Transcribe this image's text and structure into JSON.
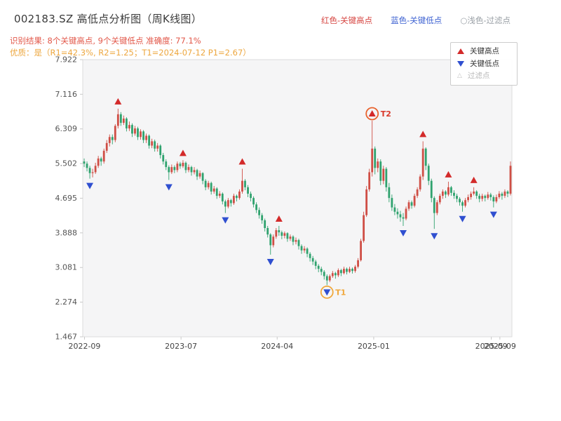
{
  "header": {
    "title": "002183.SZ 高低点分析图（周K线图）",
    "legend_items": [
      {
        "label": "红色-关键高点",
        "color": "#d64541"
      },
      {
        "label": "蓝色-关键低点",
        "color": "#3f63d2"
      },
      {
        "label": "○浅色-过滤点",
        "color": "#9aa0a6"
      }
    ],
    "result_line": "识别结果: 8个关键高点, 9个关键低点   准确度: 77.1%",
    "result_color": "#e25749",
    "quality_line": "优质：是（R1=42.3%, R2=1.25；T1=2024-07-12 P1=2.67）",
    "quality_color": "#eda73f"
  },
  "chart_data": {
    "type": "candlestick",
    "title": "002183.SZ 高低点分析图（周K线图）",
    "timeframe": "weekly",
    "symbol": "002183.SZ",
    "key_high_count": 8,
    "key_low_count": 9,
    "accuracy_pct": 77.1,
    "ylim": [
      1.467,
      7.922
    ],
    "y_ticks": [
      "7.922",
      "7.116",
      "6.309",
      "5.502",
      "4.695",
      "3.888",
      "3.081",
      "2.274",
      "1.467"
    ],
    "x_ticks": [
      {
        "label": "2022-09",
        "pos": 0.004
      },
      {
        "label": "2023-07",
        "pos": 0.229
      },
      {
        "label": "2024-04",
        "pos": 0.453
      },
      {
        "label": "2025-01",
        "pos": 0.678
      },
      {
        "label": "2025-09",
        "pos": 0.952
      },
      {
        "label": "2025-09",
        "pos": 0.972
      }
    ],
    "colors": {
      "up": "#cf4e45",
      "down": "#2fa26e",
      "key_high": "#d32a2a",
      "key_low": "#2f4fd0",
      "filtered": "#c2c2c2",
      "plot_bg": "#f5f5f6",
      "plot_border": "#dcdcdc"
    },
    "legend": [
      {
        "label": "关键高点",
        "marker": "triangle-up",
        "color": "#d32a2a"
      },
      {
        "label": "关键低点",
        "marker": "triangle-down",
        "color": "#2f4fd0"
      },
      {
        "label": "过滤点",
        "marker": "triangle-up-outline",
        "color": "#c2c2c2"
      }
    ],
    "candles": [
      [
        5.55,
        5.62,
        5.42,
        5.5
      ],
      [
        5.5,
        5.55,
        5.32,
        5.4
      ],
      [
        5.4,
        5.45,
        5.15,
        5.28
      ],
      [
        5.28,
        5.38,
        5.18,
        5.3
      ],
      [
        5.3,
        5.52,
        5.26,
        5.45
      ],
      [
        5.45,
        5.68,
        5.4,
        5.62
      ],
      [
        5.62,
        5.66,
        5.45,
        5.55
      ],
      [
        5.55,
        5.85,
        5.5,
        5.8
      ],
      [
        5.8,
        6.05,
        5.75,
        5.98
      ],
      [
        5.98,
        6.18,
        5.9,
        6.12
      ],
      [
        6.12,
        6.18,
        5.95,
        6.05
      ],
      [
        6.05,
        6.42,
        6.0,
        6.38
      ],
      [
        6.38,
        6.78,
        6.32,
        6.65
      ],
      [
        6.65,
        6.7,
        6.38,
        6.45
      ],
      [
        6.45,
        6.62,
        6.4,
        6.55
      ],
      [
        6.55,
        6.58,
        6.25,
        6.32
      ],
      [
        6.32,
        6.48,
        6.26,
        6.4
      ],
      [
        6.4,
        6.44,
        6.12,
        6.2
      ],
      [
        6.2,
        6.38,
        6.15,
        6.32
      ],
      [
        6.32,
        6.36,
        6.05,
        6.12
      ],
      [
        6.12,
        6.3,
        6.06,
        6.25
      ],
      [
        6.25,
        6.28,
        5.98,
        6.05
      ],
      [
        6.05,
        6.2,
        5.98,
        6.15
      ],
      [
        6.15,
        6.18,
        5.85,
        5.92
      ],
      [
        5.92,
        6.08,
        5.86,
        6.02
      ],
      [
        6.02,
        6.06,
        5.78,
        5.85
      ],
      [
        5.85,
        5.98,
        5.78,
        5.92
      ],
      [
        5.92,
        5.95,
        5.62,
        5.7
      ],
      [
        5.7,
        5.75,
        5.48,
        5.55
      ],
      [
        5.55,
        5.6,
        5.35,
        5.42
      ],
      [
        5.42,
        5.46,
        5.12,
        5.3
      ],
      [
        5.3,
        5.48,
        5.26,
        5.42
      ],
      [
        5.42,
        5.46,
        5.28,
        5.35
      ],
      [
        5.35,
        5.55,
        5.3,
        5.5
      ],
      [
        5.5,
        5.54,
        5.38,
        5.44
      ],
      [
        5.44,
        5.58,
        5.4,
        5.52
      ],
      [
        5.52,
        5.55,
        5.28,
        5.35
      ],
      [
        5.35,
        5.48,
        5.3,
        5.42
      ],
      [
        5.42,
        5.45,
        5.22,
        5.3
      ],
      [
        5.3,
        5.42,
        5.25,
        5.35
      ],
      [
        5.35,
        5.38,
        5.12,
        5.2
      ],
      [
        5.2,
        5.34,
        5.15,
        5.28
      ],
      [
        5.28,
        5.3,
        5.02,
        5.1
      ],
      [
        5.1,
        5.14,
        4.88,
        4.95
      ],
      [
        4.95,
        5.1,
        4.9,
        5.05
      ],
      [
        5.05,
        5.08,
        4.78,
        4.85
      ],
      [
        4.85,
        4.98,
        4.8,
        4.92
      ],
      [
        4.92,
        4.95,
        4.68,
        4.75
      ],
      [
        4.75,
        4.86,
        4.7,
        4.8
      ],
      [
        4.8,
        4.83,
        4.55,
        4.62
      ],
      [
        4.62,
        4.66,
        4.35,
        4.5
      ],
      [
        4.5,
        4.7,
        4.46,
        4.65
      ],
      [
        4.65,
        4.68,
        4.5,
        4.58
      ],
      [
        4.58,
        4.8,
        4.54,
        4.75
      ],
      [
        4.75,
        4.78,
        4.62,
        4.7
      ],
      [
        4.7,
        4.9,
        4.66,
        4.85
      ],
      [
        4.85,
        5.38,
        4.8,
        5.1
      ],
      [
        5.1,
        5.14,
        4.88,
        4.95
      ],
      [
        4.95,
        5.0,
        4.72,
        4.8
      ],
      [
        4.8,
        4.85,
        4.62,
        4.7
      ],
      [
        4.7,
        4.74,
        4.48,
        4.55
      ],
      [
        4.55,
        4.6,
        4.35,
        4.42
      ],
      [
        4.42,
        4.48,
        4.22,
        4.3
      ],
      [
        4.3,
        4.35,
        4.1,
        4.18
      ],
      [
        4.18,
        4.22,
        3.92,
        4.0
      ],
      [
        4.0,
        4.05,
        3.78,
        3.85
      ],
      [
        3.85,
        3.88,
        3.38,
        3.6
      ],
      [
        3.6,
        3.85,
        3.55,
        3.8
      ],
      [
        3.8,
        4.0,
        3.75,
        3.95
      ],
      [
        3.95,
        4.05,
        3.82,
        3.9
      ],
      [
        3.9,
        3.94,
        3.74,
        3.82
      ],
      [
        3.82,
        3.92,
        3.76,
        3.88
      ],
      [
        3.88,
        3.9,
        3.68,
        3.75
      ],
      [
        3.75,
        3.85,
        3.7,
        3.8
      ],
      [
        3.8,
        3.83,
        3.6,
        3.68
      ],
      [
        3.68,
        3.78,
        3.62,
        3.72
      ],
      [
        3.72,
        3.75,
        3.5,
        3.58
      ],
      [
        3.58,
        3.62,
        3.4,
        3.48
      ],
      [
        3.48,
        3.58,
        3.42,
        3.52
      ],
      [
        3.52,
        3.55,
        3.32,
        3.4
      ],
      [
        3.4,
        3.44,
        3.22,
        3.3
      ],
      [
        3.3,
        3.35,
        3.14,
        3.22
      ],
      [
        3.22,
        3.26,
        3.04,
        3.12
      ],
      [
        3.12,
        3.16,
        2.97,
        3.05
      ],
      [
        3.05,
        3.1,
        2.9,
        2.98
      ],
      [
        2.98,
        3.02,
        2.8,
        2.88
      ],
      [
        2.88,
        2.92,
        2.67,
        2.78
      ],
      [
        2.78,
        2.92,
        2.74,
        2.88
      ],
      [
        2.88,
        3.0,
        2.84,
        2.95
      ],
      [
        2.95,
        2.98,
        2.82,
        2.9
      ],
      [
        2.9,
        3.06,
        2.86,
        3.02
      ],
      [
        3.02,
        3.05,
        2.88,
        2.95
      ],
      [
        2.95,
        3.1,
        2.92,
        3.05
      ],
      [
        3.05,
        3.08,
        2.92,
        2.98
      ],
      [
        2.98,
        3.1,
        2.95,
        3.05
      ],
      [
        3.05,
        3.08,
        2.94,
        3.0
      ],
      [
        3.0,
        3.14,
        2.96,
        3.1
      ],
      [
        3.1,
        3.3,
        3.06,
        3.25
      ],
      [
        3.25,
        3.75,
        3.22,
        3.7
      ],
      [
        3.7,
        4.38,
        3.66,
        4.3
      ],
      [
        4.3,
        4.98,
        4.26,
        4.9
      ],
      [
        4.9,
        5.38,
        4.85,
        5.3
      ],
      [
        5.3,
        6.5,
        5.2,
        5.85
      ],
      [
        5.85,
        5.9,
        5.25,
        5.4
      ],
      [
        5.4,
        5.62,
        5.3,
        5.55
      ],
      [
        5.55,
        5.6,
        5.0,
        5.1
      ],
      [
        5.1,
        5.45,
        5.02,
        5.38
      ],
      [
        5.38,
        5.42,
        4.85,
        4.95
      ],
      [
        4.95,
        5.05,
        4.6,
        4.7
      ],
      [
        4.7,
        4.78,
        4.4,
        4.48
      ],
      [
        4.48,
        4.56,
        4.3,
        4.38
      ],
      [
        4.38,
        4.46,
        4.22,
        4.32
      ],
      [
        4.32,
        4.4,
        4.15,
        4.25
      ],
      [
        4.25,
        4.35,
        4.05,
        4.22
      ],
      [
        4.22,
        4.5,
        4.18,
        4.45
      ],
      [
        4.45,
        4.65,
        4.4,
        4.6
      ],
      [
        4.6,
        4.64,
        4.45,
        4.52
      ],
      [
        4.52,
        4.8,
        4.48,
        4.75
      ],
      [
        4.75,
        4.95,
        4.7,
        4.9
      ],
      [
        4.9,
        5.25,
        4.85,
        5.2
      ],
      [
        5.2,
        6.02,
        5.12,
        5.85
      ],
      [
        5.85,
        5.88,
        5.35,
        5.45
      ],
      [
        5.45,
        5.5,
        5.0,
        5.1
      ],
      [
        5.1,
        5.15,
        4.6,
        4.7
      ],
      [
        4.7,
        4.74,
        3.98,
        4.35
      ],
      [
        4.35,
        4.65,
        4.3,
        4.6
      ],
      [
        4.6,
        4.8,
        4.55,
        4.75
      ],
      [
        4.75,
        4.9,
        4.68,
        4.85
      ],
      [
        4.85,
        4.88,
        4.7,
        4.78
      ],
      [
        4.78,
        5.08,
        4.74,
        4.95
      ],
      [
        4.95,
        4.98,
        4.75,
        4.82
      ],
      [
        4.82,
        4.88,
        4.68,
        4.75
      ],
      [
        4.75,
        4.8,
        4.6,
        4.68
      ],
      [
        4.68,
        4.72,
        4.52,
        4.6
      ],
      [
        4.6,
        4.64,
        4.38,
        4.52
      ],
      [
        4.52,
        4.7,
        4.48,
        4.65
      ],
      [
        4.65,
        4.78,
        4.6,
        4.72
      ],
      [
        4.72,
        4.85,
        4.66,
        4.8
      ],
      [
        4.8,
        4.95,
        4.76,
        4.85
      ],
      [
        4.85,
        4.88,
        4.68,
        4.75
      ],
      [
        4.75,
        4.8,
        4.6,
        4.68
      ],
      [
        4.68,
        4.8,
        4.62,
        4.75
      ],
      [
        4.75,
        4.78,
        4.62,
        4.7
      ],
      [
        4.7,
        4.84,
        4.66,
        4.78
      ],
      [
        4.78,
        4.82,
        4.64,
        4.72
      ],
      [
        4.72,
        4.76,
        4.48,
        4.62
      ],
      [
        4.62,
        4.78,
        4.58,
        4.72
      ],
      [
        4.72,
        4.86,
        4.68,
        4.8
      ],
      [
        4.8,
        4.84,
        4.66,
        4.75
      ],
      [
        4.75,
        4.9,
        4.7,
        4.85
      ],
      [
        4.85,
        4.88,
        4.72,
        4.8
      ],
      [
        4.8,
        5.55,
        4.76,
        5.45
      ]
    ],
    "key_highs": [
      {
        "index": 12,
        "price": 6.78
      },
      {
        "index": 35,
        "price": 5.58
      },
      {
        "index": 56,
        "price": 5.38
      },
      {
        "index": 69,
        "price": 4.05
      },
      {
        "index": 102,
        "price": 6.5
      },
      {
        "index": 120,
        "price": 6.02
      },
      {
        "index": 129,
        "price": 5.08
      },
      {
        "index": 138,
        "price": 4.95
      }
    ],
    "key_lows": [
      {
        "index": 2,
        "price": 5.15
      },
      {
        "index": 30,
        "price": 5.12
      },
      {
        "index": 50,
        "price": 4.35
      },
      {
        "index": 66,
        "price": 3.38
      },
      {
        "index": 86,
        "price": 2.67
      },
      {
        "index": 113,
        "price": 4.05
      },
      {
        "index": 124,
        "price": 3.98
      },
      {
        "index": 134,
        "price": 4.38
      },
      {
        "index": 145,
        "price": 4.48
      }
    ],
    "annotations": [
      {
        "label": "T1",
        "index": 86,
        "price": 2.67,
        "type": "low",
        "ring_color": "#f0a83c",
        "text_color": "#f0a83c"
      },
      {
        "label": "T2",
        "index": 102,
        "price": 6.5,
        "type": "high",
        "ring_color": "#e8622d",
        "text_color": "#d93a2b"
      }
    ]
  }
}
